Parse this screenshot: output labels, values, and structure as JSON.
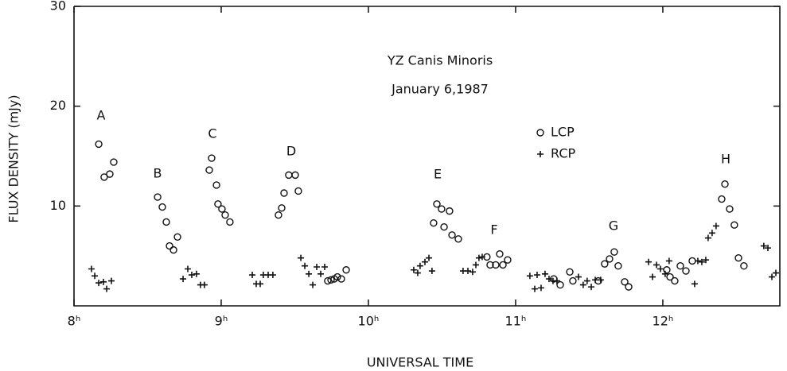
{
  "chart_data": {
    "type": "scatter",
    "title": "YZ Canis Minoris",
    "subtitle": "January 6,1987",
    "x_label": "UNIVERSAL TIME",
    "y_label": "FLUX DENSITY (mJy)",
    "annotations": [
      "A",
      "B",
      "C",
      "D",
      "E",
      "F",
      "G",
      "H"
    ],
    "xlim": [
      8,
      12.795
    ],
    "ylim": [
      0,
      30
    ],
    "xticks": [
      {
        "value": 8,
        "label": "8ʰ"
      },
      {
        "value": 9,
        "label": "9ʰ"
      },
      {
        "value": 10,
        "label": "10ʰ"
      },
      {
        "value": 11,
        "label": "11ʰ"
      },
      {
        "value": 12,
        "label": "12ʰ"
      }
    ],
    "yticks": [
      10,
      20,
      30
    ],
    "series": [
      {
        "name": "LCP",
        "marker": "circle",
        "color": "#111111",
        "x": [
          8.168,
          8.205,
          8.243,
          8.27,
          8.568,
          8.6,
          8.627,
          8.649,
          8.676,
          8.703,
          8.919,
          8.935,
          8.968,
          8.978,
          9.005,
          9.027,
          9.059,
          9.389,
          9.411,
          9.427,
          9.459,
          9.503,
          9.524,
          9.724,
          9.746,
          9.768,
          9.789,
          9.816,
          9.849,
          10.443,
          10.465,
          10.497,
          10.514,
          10.551,
          10.568,
          10.611,
          10.805,
          10.827,
          10.865,
          10.892,
          10.914,
          10.946,
          11.259,
          11.303,
          11.368,
          11.389,
          11.562,
          11.605,
          11.638,
          11.67,
          11.697,
          11.741,
          11.768,
          12.027,
          12.049,
          12.081,
          12.119,
          12.157,
          12.2,
          12.4,
          12.422,
          12.454,
          12.486,
          12.514,
          12.551
        ],
        "values": [
          16.2,
          12.9,
          13.2,
          14.4,
          10.9,
          9.9,
          8.4,
          6.0,
          5.6,
          6.9,
          13.6,
          14.8,
          12.1,
          10.2,
          9.7,
          9.1,
          8.4,
          9.1,
          9.8,
          11.3,
          13.1,
          13.1,
          11.5,
          2.5,
          2.6,
          2.7,
          2.9,
          2.7,
          3.6,
          8.3,
          10.2,
          9.7,
          7.9,
          9.5,
          7.1,
          6.7,
          4.9,
          4.1,
          4.1,
          5.2,
          4.1,
          4.6,
          2.7,
          2.1,
          3.4,
          2.5,
          2.5,
          4.2,
          4.7,
          5.4,
          4.0,
          2.4,
          1.9,
          3.6,
          2.9,
          2.5,
          4.0,
          3.5,
          4.5,
          10.7,
          12.2,
          9.7,
          8.1,
          4.8,
          4.0
        ]
      },
      {
        "name": "RCP",
        "marker": "plus",
        "color": "#111111",
        "x": [
          8.119,
          8.141,
          8.168,
          8.2,
          8.222,
          8.254,
          8.741,
          8.773,
          8.8,
          8.832,
          8.859,
          8.886,
          9.211,
          9.238,
          9.265,
          9.286,
          9.319,
          9.351,
          9.541,
          9.568,
          9.595,
          9.622,
          9.649,
          9.676,
          9.703,
          10.308,
          10.335,
          10.351,
          10.384,
          10.411,
          10.432,
          10.643,
          10.676,
          10.708,
          10.73,
          10.751,
          10.773,
          11.097,
          11.13,
          11.146,
          11.173,
          11.2,
          11.227,
          11.254,
          11.281,
          11.427,
          11.459,
          11.486,
          11.514,
          11.541,
          11.578,
          11.903,
          11.93,
          11.957,
          11.984,
          12.016,
          12.043,
          12.216,
          12.238,
          12.265,
          12.292,
          12.308,
          12.335,
          12.362,
          12.686,
          12.714,
          12.741,
          12.768
        ],
        "values": [
          3.7,
          3.0,
          2.3,
          2.4,
          1.7,
          2.5,
          2.7,
          3.7,
          3.1,
          3.2,
          2.1,
          2.1,
          3.1,
          2.2,
          2.2,
          3.1,
          3.1,
          3.1,
          4.8,
          4.0,
          3.2,
          2.1,
          3.9,
          3.2,
          3.9,
          3.6,
          3.3,
          4.0,
          4.4,
          4.8,
          3.5,
          3.5,
          3.5,
          3.4,
          4.1,
          4.8,
          4.9,
          3.0,
          1.7,
          3.1,
          1.8,
          3.2,
          2.7,
          2.5,
          2.5,
          2.9,
          2.1,
          2.5,
          1.9,
          2.6,
          2.6,
          4.4,
          2.9,
          4.1,
          3.7,
          3.2,
          4.5,
          2.2,
          4.5,
          4.4,
          4.6,
          6.8,
          7.3,
          8.0,
          6.0,
          5.8,
          2.9,
          3.3
        ]
      }
    ]
  }
}
